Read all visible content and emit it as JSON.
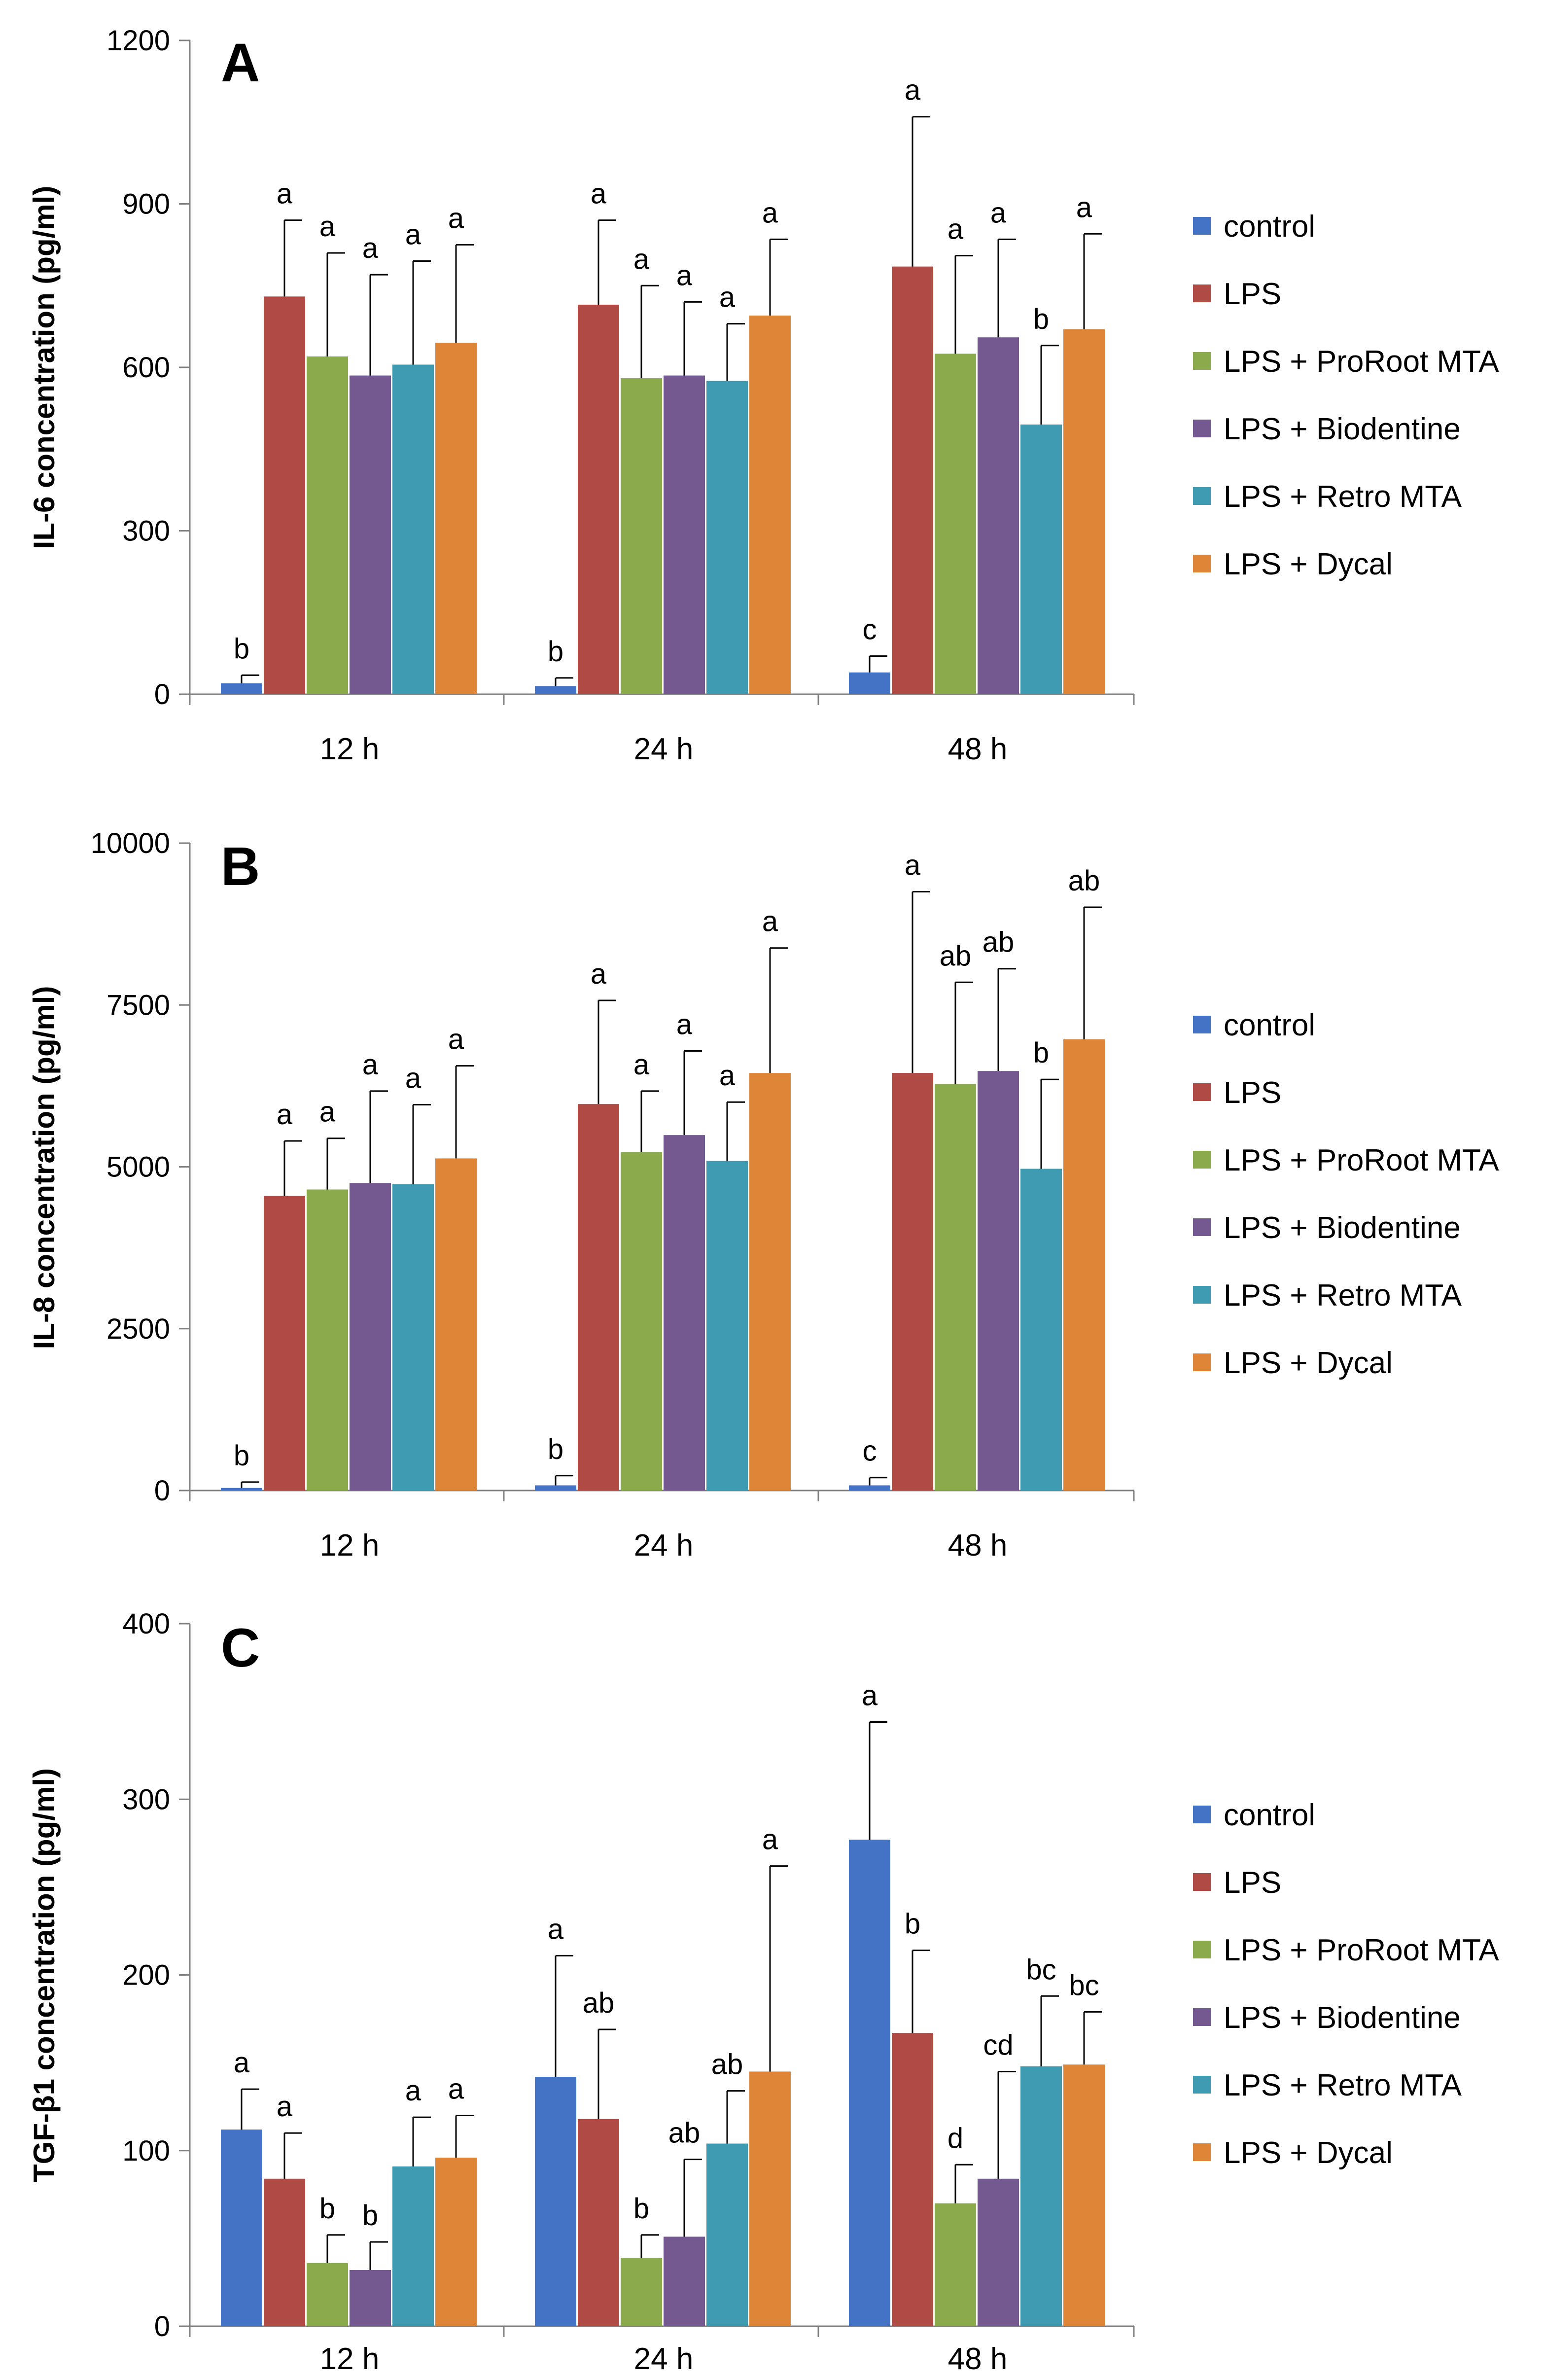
{
  "colors": {
    "control": "#4472C4",
    "LPS": "#B04A45",
    "LPS + ProRoot MTA": "#8BAA4C",
    "LPS + Biodentine": "#73598F",
    "LPS + Retro MTA": "#3E9BB2",
    "LPS + Dycal": "#DE8538"
  },
  "chart_data": [
    {
      "type": "bar",
      "panel": "A",
      "ylabel": "IL-6 concentration (pg/ml)",
      "ylim": [
        0,
        1200
      ],
      "yticks": [
        0,
        300,
        600,
        900,
        1200
      ],
      "categories": [
        "12  h",
        "24  h",
        "48  h"
      ],
      "legend": [
        "control",
        "LPS",
        "LPS + ProRoot MTA",
        "LPS + Biodentine",
        "LPS + Retro MTA",
        "LPS + Dycal"
      ],
      "series": [
        {
          "name": "control",
          "values": [
            20,
            15,
            40
          ],
          "errors": [
            15,
            15,
            30
          ],
          "labels": [
            "b",
            "b",
            "c"
          ]
        },
        {
          "name": "LPS",
          "values": [
            730,
            715,
            785
          ],
          "errors": [
            140,
            155,
            275
          ],
          "labels": [
            "a",
            "a",
            "a"
          ]
        },
        {
          "name": "LPS + ProRoot MTA",
          "values": [
            620,
            580,
            625
          ],
          "errors": [
            190,
            170,
            180
          ],
          "labels": [
            "a",
            "a",
            "a"
          ]
        },
        {
          "name": "LPS + Biodentine",
          "values": [
            585,
            585,
            655
          ],
          "errors": [
            185,
            135,
            180
          ],
          "labels": [
            "a",
            "a",
            "a"
          ]
        },
        {
          "name": "LPS + Retro MTA",
          "values": [
            605,
            575,
            495
          ],
          "errors": [
            190,
            105,
            145
          ],
          "labels": [
            "a",
            "a",
            "b"
          ]
        },
        {
          "name": "LPS + Dycal",
          "values": [
            645,
            695,
            670
          ],
          "errors": [
            180,
            140,
            175
          ],
          "labels": [
            "a",
            "a",
            "a"
          ]
        }
      ]
    },
    {
      "type": "bar",
      "panel": "B",
      "ylabel": "IL-8 concentration (pg/ml)",
      "ylim": [
        0,
        10000
      ],
      "yticks": [
        0,
        2500,
        5000,
        7500,
        10000
      ],
      "categories": [
        "12  h",
        "24  h",
        "48  h"
      ],
      "legend": [
        "control",
        "LPS",
        "LPS + ProRoot MTA",
        "LPS + Biodentine",
        "LPS + Retro MTA",
        "LPS + Dycal"
      ],
      "series": [
        {
          "name": "control",
          "values": [
            40,
            80,
            80
          ],
          "errors": [
            90,
            150,
            120
          ],
          "labels": [
            "b",
            "b",
            "c"
          ]
        },
        {
          "name": "LPS",
          "values": [
            4550,
            5970,
            6450
          ],
          "errors": [
            850,
            1600,
            2800
          ],
          "labels": [
            "a",
            "a",
            "a"
          ]
        },
        {
          "name": "LPS + ProRoot MTA",
          "values": [
            4650,
            5230,
            6280
          ],
          "errors": [
            790,
            940,
            1570
          ],
          "labels": [
            "a",
            "a",
            "ab"
          ]
        },
        {
          "name": "LPS + Biodentine",
          "values": [
            4750,
            5490,
            6480
          ],
          "errors": [
            1420,
            1300,
            1580
          ],
          "labels": [
            "a",
            "a",
            "ab"
          ]
        },
        {
          "name": "LPS + Retro MTA",
          "values": [
            4730,
            5090,
            4970
          ],
          "errors": [
            1230,
            910,
            1380
          ],
          "labels": [
            "a",
            "a",
            "b"
          ]
        },
        {
          "name": "LPS + Dycal",
          "values": [
            5130,
            6450,
            6970
          ],
          "errors": [
            1430,
            1930,
            2040
          ],
          "labels": [
            "a",
            "a",
            "ab"
          ]
        }
      ]
    },
    {
      "type": "bar",
      "panel": "C",
      "ylabel": "TGF-β1 concentration (pg/ml)",
      "ylim": [
        0,
        400
      ],
      "yticks": [
        0,
        100,
        200,
        300,
        400
      ],
      "categories": [
        "12  h",
        "24  h",
        "48  h"
      ],
      "legend": [
        "control",
        "LPS",
        "LPS + ProRoot MTA",
        "LPS + Biodentine",
        "LPS + Retro MTA",
        "LPS + Dycal"
      ],
      "series": [
        {
          "name": "control",
          "values": [
            112,
            142,
            277
          ],
          "errors": [
            23,
            69,
            67
          ],
          "labels": [
            "a",
            "a",
            "a"
          ]
        },
        {
          "name": "LPS",
          "values": [
            84,
            118,
            167
          ],
          "errors": [
            26,
            51,
            47
          ],
          "labels": [
            "a",
            "ab",
            "b"
          ]
        },
        {
          "name": "LPS + ProRoot MTA",
          "values": [
            36,
            39,
            70
          ],
          "errors": [
            16,
            13,
            22
          ],
          "labels": [
            "b",
            "b",
            "d"
          ]
        },
        {
          "name": "LPS + Biodentine",
          "values": [
            32,
            51,
            84
          ],
          "errors": [
            16,
            44,
            61
          ],
          "labels": [
            "b",
            "ab",
            "cd"
          ]
        },
        {
          "name": "LPS + Retro MTA",
          "values": [
            91,
            104,
            148
          ],
          "errors": [
            28,
            30,
            40
          ],
          "labels": [
            "a",
            "ab",
            "bc"
          ]
        },
        {
          "name": "LPS + Dycal",
          "values": [
            96,
            145,
            149
          ],
          "errors": [
            24,
            117,
            30
          ],
          "labels": [
            "a",
            "a",
            "bc"
          ]
        }
      ]
    }
  ]
}
